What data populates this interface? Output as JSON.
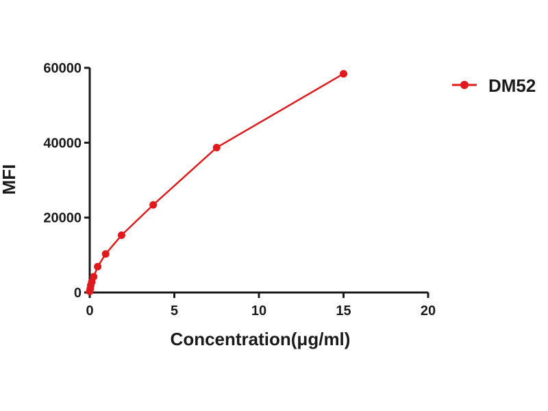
{
  "chart_data": {
    "type": "line",
    "xlabel": "Concentration(μg/ml)",
    "ylabel": "MFI",
    "xlim": [
      0,
      20
    ],
    "ylim": [
      0,
      60000
    ],
    "xticks": [
      0,
      5,
      10,
      15,
      20
    ],
    "yticks": [
      0,
      20000,
      40000,
      60000
    ],
    "grid": false,
    "legend_position": "top-right",
    "series": [
      {
        "name": "DM52",
        "color": "#e0191c",
        "marker": "circle",
        "x": [
          0.0,
          0.03,
          0.06,
          0.12,
          0.23,
          0.47,
          0.94,
          1.88,
          3.75,
          7.5,
          15
        ],
        "y": [
          300,
          1000,
          1900,
          2800,
          4200,
          6900,
          10300,
          15300,
          23400,
          38700,
          58400
        ]
      }
    ]
  }
}
